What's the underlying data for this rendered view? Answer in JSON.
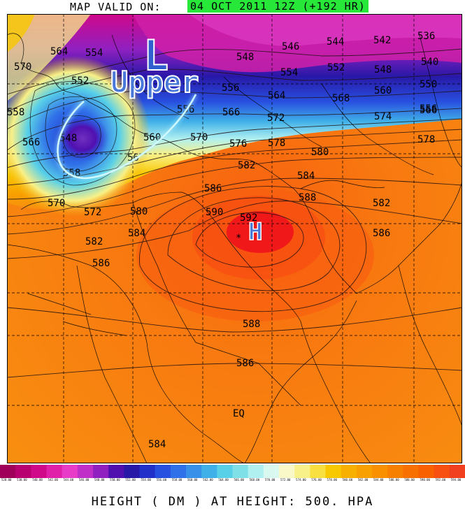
{
  "header": {
    "prefix": "MAP VALID ON:",
    "valid": "04 OCT 2011 12Z (+192 HR)",
    "highlight_color": "#27e839"
  },
  "footer": {
    "caption": "HEIGHT (  DM  ) AT HEIGHT: 500. HPA"
  },
  "annotations": {
    "low_letter": "L",
    "low_word": "Upper",
    "high_letter": "H"
  },
  "contour_labels": [
    {
      "text": "570"
    },
    {
      "text": "564"
    },
    {
      "text": "554"
    },
    {
      "text": "552"
    },
    {
      "text": "558"
    },
    {
      "text": "566"
    },
    {
      "text": "548"
    },
    {
      "text": "558"
    },
    {
      "text": "56"
    },
    {
      "text": "560"
    },
    {
      "text": "556"
    },
    {
      "text": "566"
    },
    {
      "text": "548"
    },
    {
      "text": "546"
    },
    {
      "text": "544"
    },
    {
      "text": "542"
    },
    {
      "text": "536"
    },
    {
      "text": "540"
    },
    {
      "text": "554"
    },
    {
      "text": "552"
    },
    {
      "text": "548"
    },
    {
      "text": "550"
    },
    {
      "text": "556"
    },
    {
      "text": "564"
    },
    {
      "text": "568"
    },
    {
      "text": "560"
    },
    {
      "text": "556"
    },
    {
      "text": "572"
    },
    {
      "text": "574"
    },
    {
      "text": "566"
    },
    {
      "text": "570"
    },
    {
      "text": "576"
    },
    {
      "text": "578"
    },
    {
      "text": "578"
    },
    {
      "text": "580"
    },
    {
      "text": "582"
    },
    {
      "text": "584"
    },
    {
      "text": "586"
    },
    {
      "text": "588"
    },
    {
      "text": "582"
    },
    {
      "text": "570"
    },
    {
      "text": "572"
    },
    {
      "text": "580"
    },
    {
      "text": "584"
    },
    {
      "text": "590"
    },
    {
      "text": "592"
    },
    {
      "text": "582"
    },
    {
      "text": "586"
    },
    {
      "text": "586"
    },
    {
      "text": "588"
    },
    {
      "text": "586"
    },
    {
      "text": "EQ"
    },
    {
      "text": "584"
    }
  ],
  "colorbar": {
    "colors": [
      "#a0005a",
      "#b80070",
      "#d0088a",
      "#e020a8",
      "#e83cc8",
      "#c030c8",
      "#9020c0",
      "#5010b0",
      "#2818a8",
      "#2030c8",
      "#2850e0",
      "#3070e8",
      "#3890e8",
      "#40b0e8",
      "#58d0e8",
      "#80e0e8",
      "#b0f0f0",
      "#d8f8f0",
      "#f8f8c8",
      "#f8f088",
      "#f8e040",
      "#f8c800",
      "#f8b000",
      "#f8a000",
      "#f89000",
      "#f88000",
      "#f87000",
      "#f86000",
      "#f85010",
      "#f04020"
    ],
    "labels": [
      "528.00",
      "530.00",
      "540.00",
      "542.00",
      "544.00",
      "546.00",
      "548.00",
      "550.00",
      "552.00",
      "554.00",
      "556.00",
      "558.00",
      "560.00",
      "562.00",
      "564.00",
      "566.00",
      "568.00",
      "570.00",
      "572.00",
      "574.00",
      "576.00",
      "578.00",
      "580.00",
      "582.00",
      "584.00",
      "586.00",
      "588.00",
      "590.00",
      "592.00",
      "594.00"
    ]
  }
}
